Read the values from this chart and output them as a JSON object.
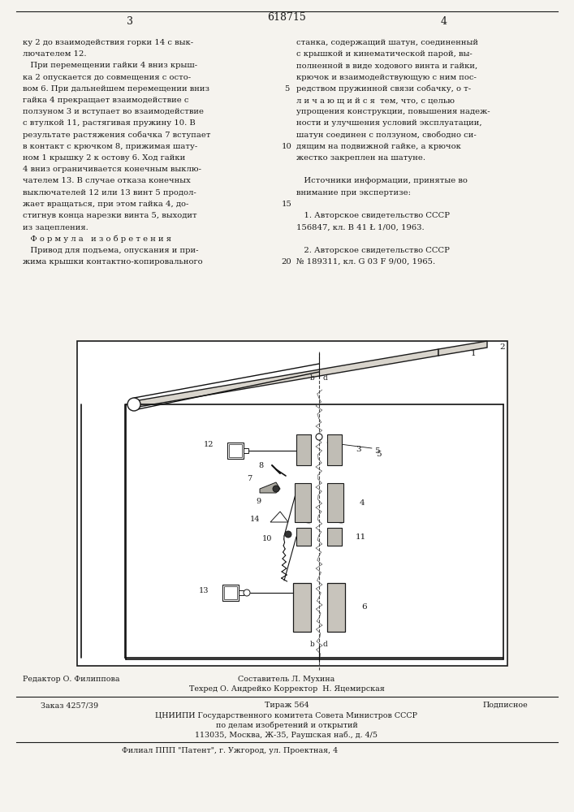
{
  "page_color": "#f5f3ee",
  "text_color": "#1a1a1a",
  "title_number": "618715",
  "page_left": "3",
  "page_right": "4",
  "left_col": [
    "ку 2 до взаимодействия горки 14 с вык-",
    "лючателем 12.",
    "   При перемещении гайки 4 вниз крыш-",
    "ка 2 опускается до совмещения с осто-",
    "вом 6. При дальнейшем перемещении вниз",
    "гайка 4 прекращает взаимодействие с",
    "ползуном 3 и вступает во взаимодействие",
    "с втулкой 11, растягивая пружину 10. В",
    "результате растяжения собачка 7 вступает",
    "в контакт с крючком 8, прижимая шату-",
    "ном 1 крышку 2 к остову 6. Ход гайки",
    "4 вниз ограничивается конечным выклю-",
    "чателем 13. В случае отказа конечных",
    "выключателей 12 или 13 винт 5 продол-",
    "жает вращаться, при этом гайка 4, до-",
    "стигнув конца нарезки винта 5, выходит",
    "из зацепления.",
    "   Ф о р м у л а   и з о б р е т е н и я",
    "   Привод для подъема, опускания и при-",
    "жима крышки контактно-копировального"
  ],
  "right_col": [
    "станка, содержащий шатун, соединенный",
    "с крышкой и кинематической парой, вы-",
    "полненной в виде ходового винта и гайки,",
    "крючок и взаимодействующую с ним пос-",
    "редством пружинной связи собачку, о т-",
    "л и ч а ю щ и й с я  тем, что, с целью",
    "упрощения конструкции, повышения надеж-",
    "ности и улучшения условий эксплуатации,",
    "шатун соединен с ползуном, свободно си-",
    "дящим на подвижной гайке, а крючок",
    "жестко закреплен на шатуне.",
    "",
    "   Источники информации, принятые во",
    "внимание при экспертизе:",
    "",
    "   1. Авторское свидетельство СССР",
    "156847, кл. В 41 Ł 1/00, 1963.",
    "",
    "   2. Авторское свидетельство СССР",
    "№ 189311, кл. G 03 F 9/00, 1965."
  ],
  "line_nums": [
    "5",
    "10",
    "15",
    "20"
  ],
  "footer": [
    "Редактор О. Филиппова",
    "Техред О. Андрейко Корректор  Н. Яцемирская",
    "Составитель Л. Мухина",
    "Заказ 4257/39",
    "Тираж 564",
    "Подписное",
    "ЦНИИПИ Государственного комитета Совета Министров СССР",
    "по делам изобретений и открытий",
    "113035, Москва, Ж-35, Раушская наб., д. 4/5",
    "Филиал ППП \"Патент\", г. Ужгород, ул. Проектная, 4"
  ]
}
